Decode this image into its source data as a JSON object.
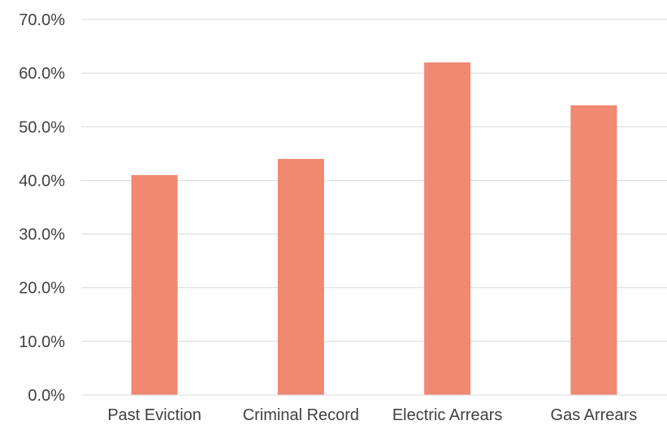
{
  "chart_data": {
    "type": "bar",
    "categories": [
      "Past Eviction",
      "Criminal Record",
      "Electric Arrears",
      "Gas Arrears"
    ],
    "values": [
      41.0,
      44.0,
      62.0,
      54.0
    ],
    "ylim": [
      0,
      70
    ],
    "yticks": [
      "0.0%",
      "10.0%",
      "20.0%",
      "30.0%",
      "40.0%",
      "50.0%",
      "60.0%",
      "70.0%"
    ],
    "grid": true,
    "legend": "none",
    "bar_color": "#f08872"
  }
}
